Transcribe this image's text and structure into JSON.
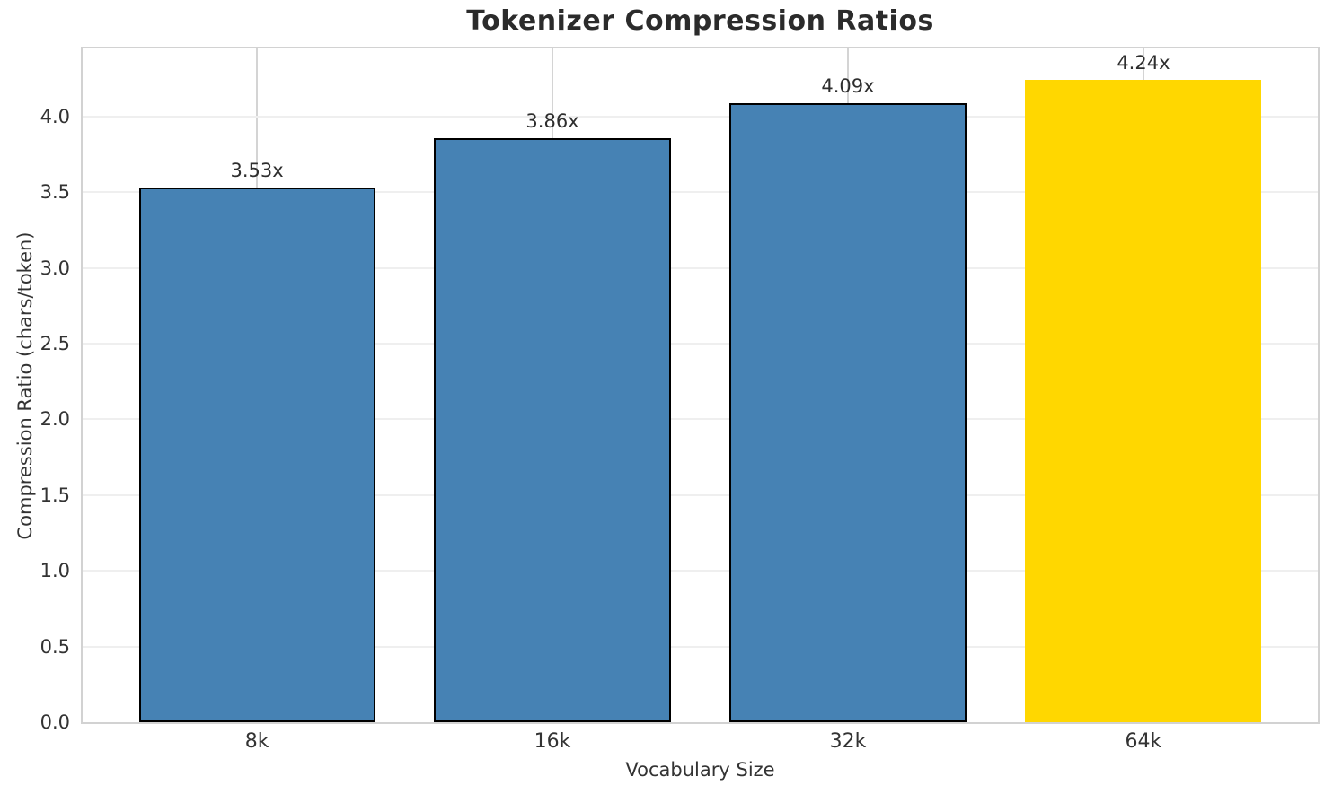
{
  "chart_data": {
    "type": "bar",
    "title": "Tokenizer Compression Ratios",
    "xlabel": "Vocabulary Size",
    "ylabel": "Compression Ratio (chars/token)",
    "categories": [
      "8k",
      "16k",
      "32k",
      "64k"
    ],
    "values": [
      3.53,
      3.86,
      4.09,
      4.24
    ],
    "value_labels": [
      "3.53x",
      "3.86x",
      "4.09x",
      "4.24x"
    ],
    "yticks": [
      0.0,
      0.5,
      1.0,
      1.5,
      2.0,
      2.5,
      3.0,
      3.5,
      4.0
    ],
    "ytick_labels": [
      "0.0",
      "0.5",
      "1.0",
      "1.5",
      "2.0",
      "2.5",
      "3.0",
      "3.5",
      "4.0"
    ],
    "ylim": [
      0,
      4.45
    ],
    "bar_width_units": 0.8,
    "xlim_units": [
      -0.59,
      3.59
    ],
    "grid": true,
    "legend": "none",
    "colors": {
      "bar_fill": [
        "#4682b4",
        "#4682b4",
        "#4682b4",
        "#ffd700"
      ],
      "bar_edge": [
        "#000000",
        "#000000",
        "#000000",
        "none"
      ],
      "grid_horizontal": "#efefef",
      "grid_vertical": "#d4d4d4",
      "plot_border": "#d2d2d2",
      "title_text": "#2b2b2b",
      "tick_text": "#333333"
    }
  }
}
